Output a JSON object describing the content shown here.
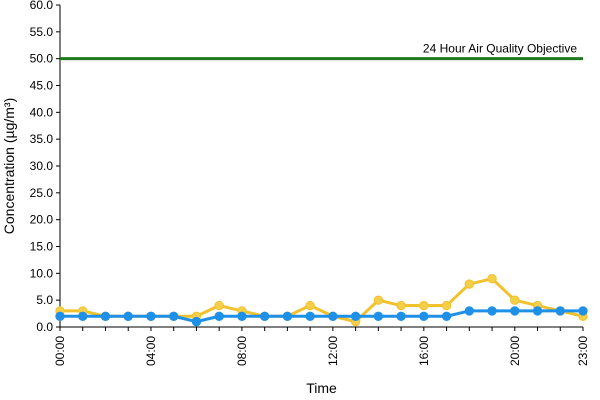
{
  "chart_data": {
    "type": "line",
    "x": [
      "00:00",
      "01:00",
      "02:00",
      "03:00",
      "04:00",
      "05:00",
      "06:00",
      "07:00",
      "08:00",
      "09:00",
      "10:00",
      "11:00",
      "12:00",
      "13:00",
      "14:00",
      "15:00",
      "16:00",
      "17:00",
      "18:00",
      "19:00",
      "20:00",
      "21:00",
      "22:00",
      "23:00"
    ],
    "x_tick_labels": [
      "00:00",
      "04:00",
      "08:00",
      "12:00",
      "16:00",
      "20:00",
      "23:00"
    ],
    "y_tick_labels": [
      "0.0",
      "5.0",
      "10.0",
      "15.0",
      "20.0",
      "25.0",
      "30.0",
      "35.0",
      "40.0",
      "45.0",
      "50.0",
      "55.0",
      "60.0"
    ],
    "ylim": [
      0,
      60
    ],
    "xlabel": "Time",
    "ylabel": "Concentration (µg/m³)",
    "series": [
      {
        "color": "#f2c12e",
        "marker_fill": "#f4cf4a",
        "values": [
          3,
          3,
          2,
          2,
          2,
          2,
          2,
          4,
          3,
          2,
          2,
          4,
          2,
          1,
          5,
          4,
          4,
          4,
          8,
          9,
          5,
          4,
          3,
          2
        ]
      },
      {
        "color": "#1e90e8",
        "marker_fill": "#1e90e8",
        "values": [
          2,
          2,
          2,
          2,
          2,
          2,
          1,
          2,
          2,
          2,
          2,
          2,
          2,
          2,
          2,
          2,
          2,
          2,
          3,
          3,
          3,
          3,
          3,
          3
        ]
      }
    ],
    "reference_line": {
      "label": "24 Hour Air Quality Objective",
      "value": 50,
      "color": "#1f7a1f"
    },
    "grid": false
  }
}
